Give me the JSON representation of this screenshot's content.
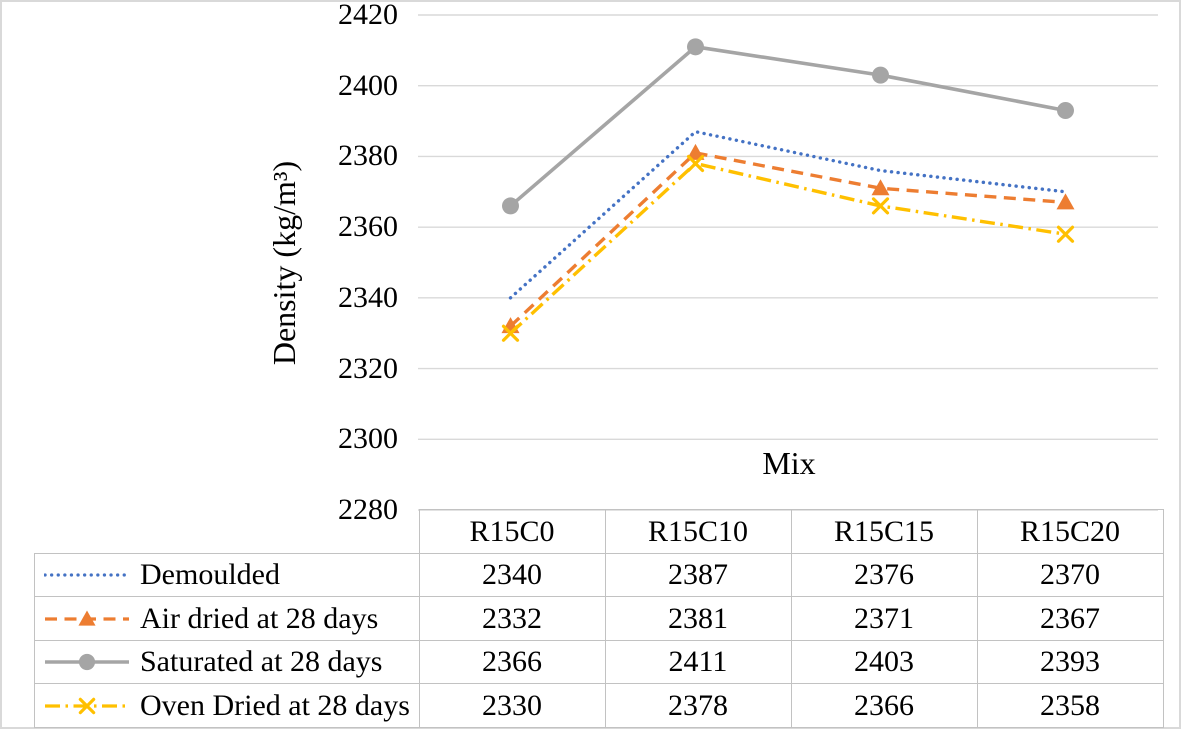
{
  "chart_data": {
    "type": "line",
    "title": "",
    "x_axis": {
      "title": "Mix",
      "categories": [
        "R15C0",
        "R15C10",
        "R15C15",
        "R15C20"
      ]
    },
    "y_axis": {
      "title": "Density (kg/m³)",
      "min": 2280,
      "max": 2420,
      "step": 20,
      "ticks": [
        2420,
        2400,
        2380,
        2360,
        2340,
        2320,
        2300,
        2280
      ]
    },
    "gridlines": "horizontal",
    "legend_position": "data-table-left-column",
    "series": [
      {
        "name": "Demoulded",
        "values": [
          2340,
          2387,
          2376,
          2370
        ],
        "color": "#4472C4",
        "line_style": "dot",
        "marker": "none"
      },
      {
        "name": "Air dried at 28 days",
        "values": [
          2332,
          2381,
          2371,
          2367
        ],
        "color": "#ED7D31",
        "line_style": "dash",
        "marker": "triangle"
      },
      {
        "name": "Saturated at 28 days",
        "values": [
          2366,
          2411,
          2403,
          2393
        ],
        "color": "#A5A5A5",
        "line_style": "solid",
        "marker": "circle"
      },
      {
        "name": "Oven Dried at 28 days",
        "values": [
          2330,
          2378,
          2366,
          2358
        ],
        "color": "#FFC000",
        "line_style": "dash-dot",
        "marker": "x"
      }
    ]
  },
  "colors": {
    "gridline": "#D9D9D9",
    "table_border": "#C2C2C2",
    "frame_border": "#D9D9D9",
    "text": "#000000"
  }
}
